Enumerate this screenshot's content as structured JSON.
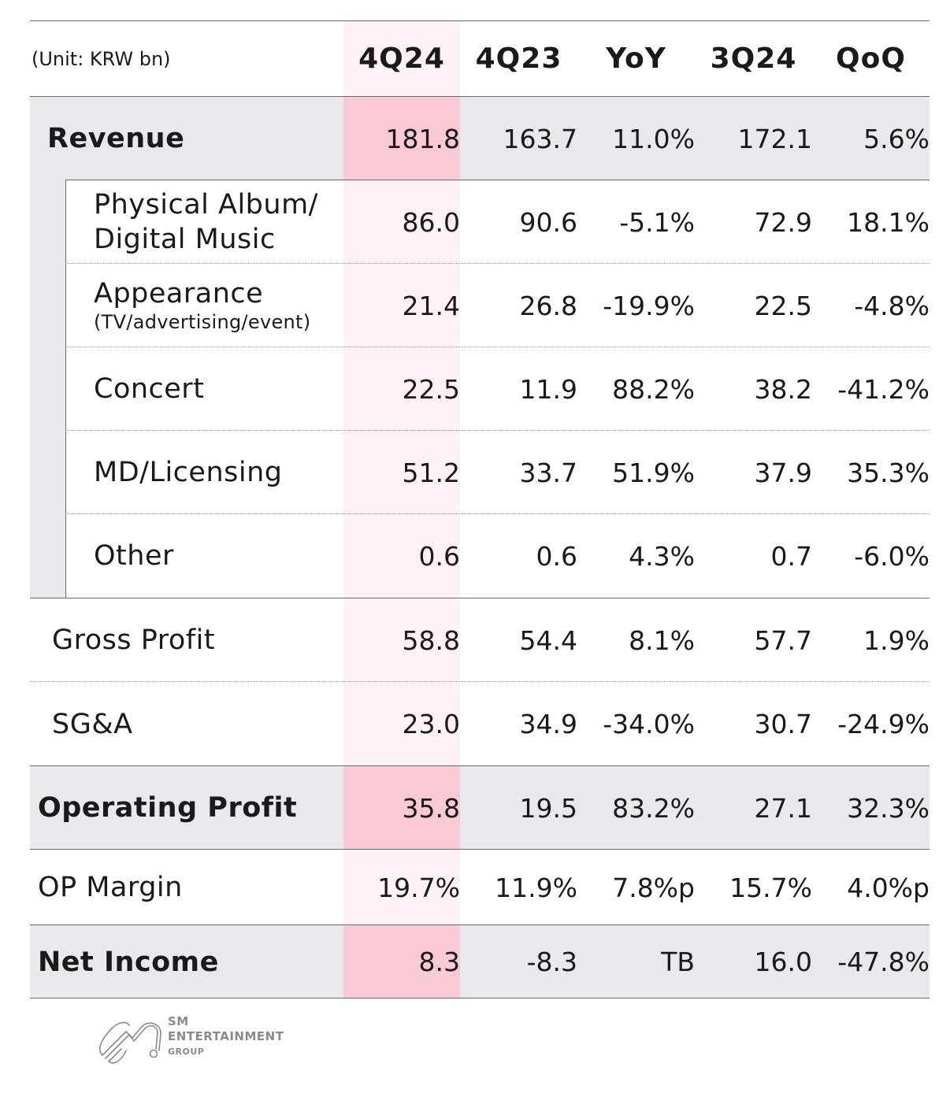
{
  "unit_label": "(Unit: KRW bn)",
  "columns": [
    "4Q24",
    "4Q23",
    "YoY",
    "3Q24",
    "QoQ"
  ],
  "rows": [
    {
      "label": "Revenue",
      "values": [
        "181.8",
        "163.7",
        "11.0%",
        "172.1",
        "5.6%"
      ]
    },
    {
      "label": "Physical Album/",
      "label2": "Digital Music",
      "values": [
        "86.0",
        "90.6",
        "-5.1%",
        "72.9",
        "18.1%"
      ]
    },
    {
      "label": "Appearance",
      "sublabel": "(TV/advertising/event)",
      "values": [
        "21.4",
        "26.8",
        "-19.9%",
        "22.5",
        "-4.8%"
      ]
    },
    {
      "label": "Concert",
      "values": [
        "22.5",
        "11.9",
        "88.2%",
        "38.2",
        "-41.2%"
      ]
    },
    {
      "label": "MD/Licensing",
      "values": [
        "51.2",
        "33.7",
        "51.9%",
        "37.9",
        "35.3%"
      ]
    },
    {
      "label": "Other",
      "values": [
        "0.6",
        "0.6",
        "4.3%",
        "0.7",
        "-6.0%"
      ]
    },
    {
      "label": "Gross Profit",
      "values": [
        "58.8",
        "54.4",
        "8.1%",
        "57.7",
        "1.9%"
      ]
    },
    {
      "label": "SG&A",
      "values": [
        "23.0",
        "34.9",
        "-34.0%",
        "30.7",
        "-24.9%"
      ]
    },
    {
      "label": "Operating Profit",
      "values": [
        "35.8",
        "19.5",
        "83.2%",
        "27.1",
        "32.3%"
      ]
    },
    {
      "label": "OP Margin",
      "values": [
        "19.7%",
        "11.9%",
        "7.8%p",
        "15.7%",
        "4.0%p"
      ]
    },
    {
      "label": "Net Income",
      "values": [
        "8.3",
        "-8.3",
        "TB",
        "16.0",
        "-47.8%"
      ]
    }
  ],
  "logo": {
    "line1": "SM",
    "line2": "ENTERTAINMENT",
    "line3": "GROUP"
  },
  "colors": {
    "highlight_column": "#fff1f4",
    "highlight_cell": "#f9c9d6",
    "gray_row": "#e9e9ed",
    "rule": "#6a6a6a"
  }
}
